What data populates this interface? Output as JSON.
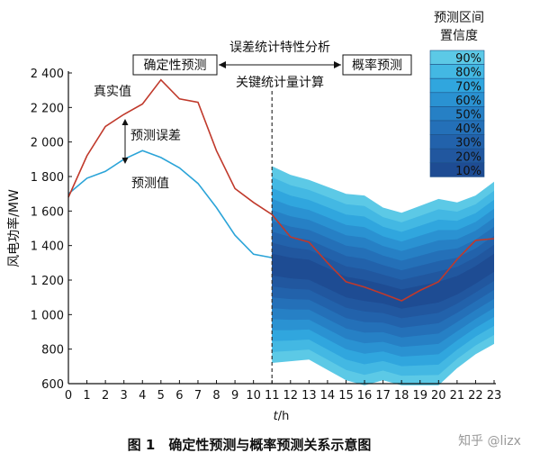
{
  "chart_data": {
    "type": "area",
    "title": "确定性预测与概率预测关系示意图",
    "xlabel": "t/h",
    "ylabel": "风电功率/MW",
    "xlim": [
      0,
      23
    ],
    "ylim": [
      600,
      2400
    ],
    "x_ticks": [
      0,
      1,
      2,
      3,
      4,
      5,
      6,
      7,
      8,
      9,
      10,
      11,
      12,
      13,
      14,
      15,
      16,
      17,
      18,
      19,
      20,
      21,
      22,
      23
    ],
    "y_ticks": [
      600,
      800,
      1000,
      1200,
      1400,
      1600,
      1800,
      2000,
      2200,
      2400
    ],
    "y_tick_labels": [
      "600",
      "800",
      "1 000",
      "1 200",
      "1 400",
      "1 600",
      "1 800",
      "2 000",
      "2 200",
      "2 400"
    ],
    "actual": {
      "name": "真实值",
      "x": [
        0,
        1,
        2,
        3,
        4,
        5,
        6,
        7,
        8,
        9,
        10,
        11,
        12,
        13,
        14,
        15,
        16,
        17,
        18,
        19,
        20,
        21,
        22,
        23
      ],
      "values": [
        1680,
        1920,
        2090,
        2160,
        2220,
        2360,
        2250,
        2230,
        1950,
        1730,
        1650,
        1580,
        1450,
        1420,
        1300,
        1190,
        1160,
        1120,
        1080,
        1140,
        1190,
        1320,
        1430,
        1440
      ],
      "color": "#c0392b"
    },
    "forecast": {
      "name": "预测值",
      "x": [
        0,
        1,
        2,
        3,
        4,
        5,
        6,
        7,
        8,
        9,
        10,
        11
      ],
      "values": [
        1700,
        1790,
        1830,
        1900,
        1950,
        1910,
        1850,
        1760,
        1620,
        1460,
        1350,
        1330
      ],
      "color": "#2ba4d8"
    },
    "forecast_start": 11,
    "intervals": {
      "x": [
        11,
        12,
        13,
        14,
        15,
        16,
        17,
        18,
        19,
        20,
        21,
        22,
        23
      ],
      "center": [
        1290,
        1270,
        1260,
        1210,
        1160,
        1140,
        1120,
        1090,
        1110,
        1130,
        1170,
        1230,
        1300
      ],
      "half_width_at_90": [
        570,
        540,
        520,
        530,
        540,
        550,
        500,
        500,
        520,
        540,
        480,
        460,
        470
      ],
      "levels": [
        "90%",
        "80%",
        "70%",
        "60%",
        "50%",
        "40%",
        "30%",
        "20%",
        "10%"
      ],
      "colors": [
        "#5cc9e6",
        "#43b8e3",
        "#30a6de",
        "#2a92d2",
        "#2680c5",
        "#2470b8",
        "#2262ab",
        "#21579f",
        "#1e4c93"
      ]
    },
    "legend": {
      "title_line1": "预测区间",
      "title_line2": "置信度",
      "position": "top-right"
    },
    "annotations": {
      "box_left": "确定性预测",
      "box_right": "概率预测",
      "arrow_top": "误差统计特性分析",
      "arrow_bottom": "关键统计量计算",
      "error_label": "预测误差",
      "actual_label": "真实值",
      "forecast_label": "预测值"
    },
    "caption": "图 1　确定性预测与概率预测关系示意图",
    "watermark": "知乎 @lizx"
  }
}
